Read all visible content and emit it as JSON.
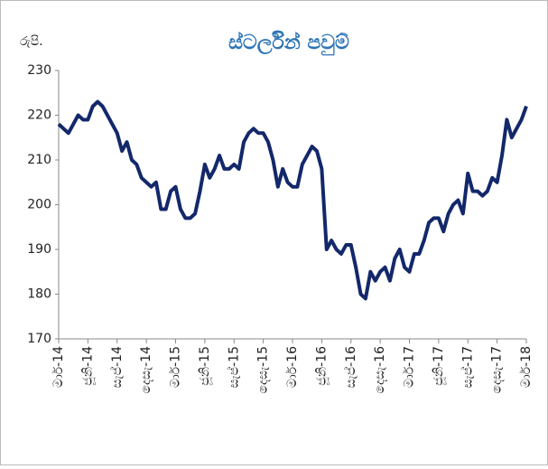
{
  "chart_data": {
    "type": "line",
    "title": "ස්ටර්ලින් පවුම්",
    "y_label": "රුපි.",
    "categories": [
      "මාර්-14",
      null,
      null,
      null,
      null,
      null,
      "ජූනි-14",
      null,
      null,
      null,
      null,
      null,
      "සැප්-14",
      null,
      null,
      null,
      null,
      null,
      "දෙසැ-14",
      null,
      null,
      null,
      null,
      null,
      "මාර්-15",
      null,
      null,
      null,
      null,
      null,
      "ජූනි-15",
      null,
      null,
      null,
      null,
      null,
      "සැප්-15",
      null,
      null,
      null,
      null,
      null,
      "දෙසැ-15",
      null,
      null,
      null,
      null,
      null,
      "මාර්-16",
      null,
      null,
      null,
      null,
      null,
      "ජූනි-16",
      null,
      null,
      null,
      null,
      null,
      "සැප්-16",
      null,
      null,
      null,
      null,
      null,
      "දෙසැ-16",
      null,
      null,
      null,
      null,
      null,
      "මාර්-17",
      null,
      null,
      null,
      null,
      null,
      "ජූනි-17",
      null,
      null,
      null,
      null,
      null,
      "සැප්-17",
      null,
      null,
      null,
      null,
      null,
      "දෙසැ-17",
      null,
      null,
      null,
      null,
      null,
      "මාර්-18"
    ],
    "series": [
      {
        "name": "ස්ටර්ලින් පවුම්",
        "color": "#13286b",
        "values": [
          218,
          217,
          216,
          218,
          220,
          219,
          219,
          222,
          223,
          222,
          220,
          218,
          216,
          212,
          214,
          210,
          209,
          206,
          205,
          204,
          205,
          199,
          199,
          203,
          204,
          199,
          197,
          197,
          198,
          203,
          209,
          206,
          208,
          211,
          208,
          208,
          209,
          208,
          214,
          216,
          217,
          216,
          216,
          214,
          210,
          204,
          208,
          205,
          204,
          204,
          209,
          211,
          213,
          212,
          208,
          190,
          192,
          190,
          189,
          191,
          191,
          186,
          180,
          179,
          185,
          183,
          185,
          186,
          183,
          188,
          190,
          186,
          185,
          189,
          189,
          192,
          196,
          197,
          197,
          194,
          198,
          200,
          201,
          198,
          207,
          203,
          203,
          202,
          203,
          206,
          205,
          211,
          219,
          215,
          217,
          219,
          222
        ]
      }
    ],
    "ylim": [
      170,
      230
    ],
    "yticks": [
      170,
      180,
      190,
      200,
      210,
      220,
      230
    ]
  }
}
